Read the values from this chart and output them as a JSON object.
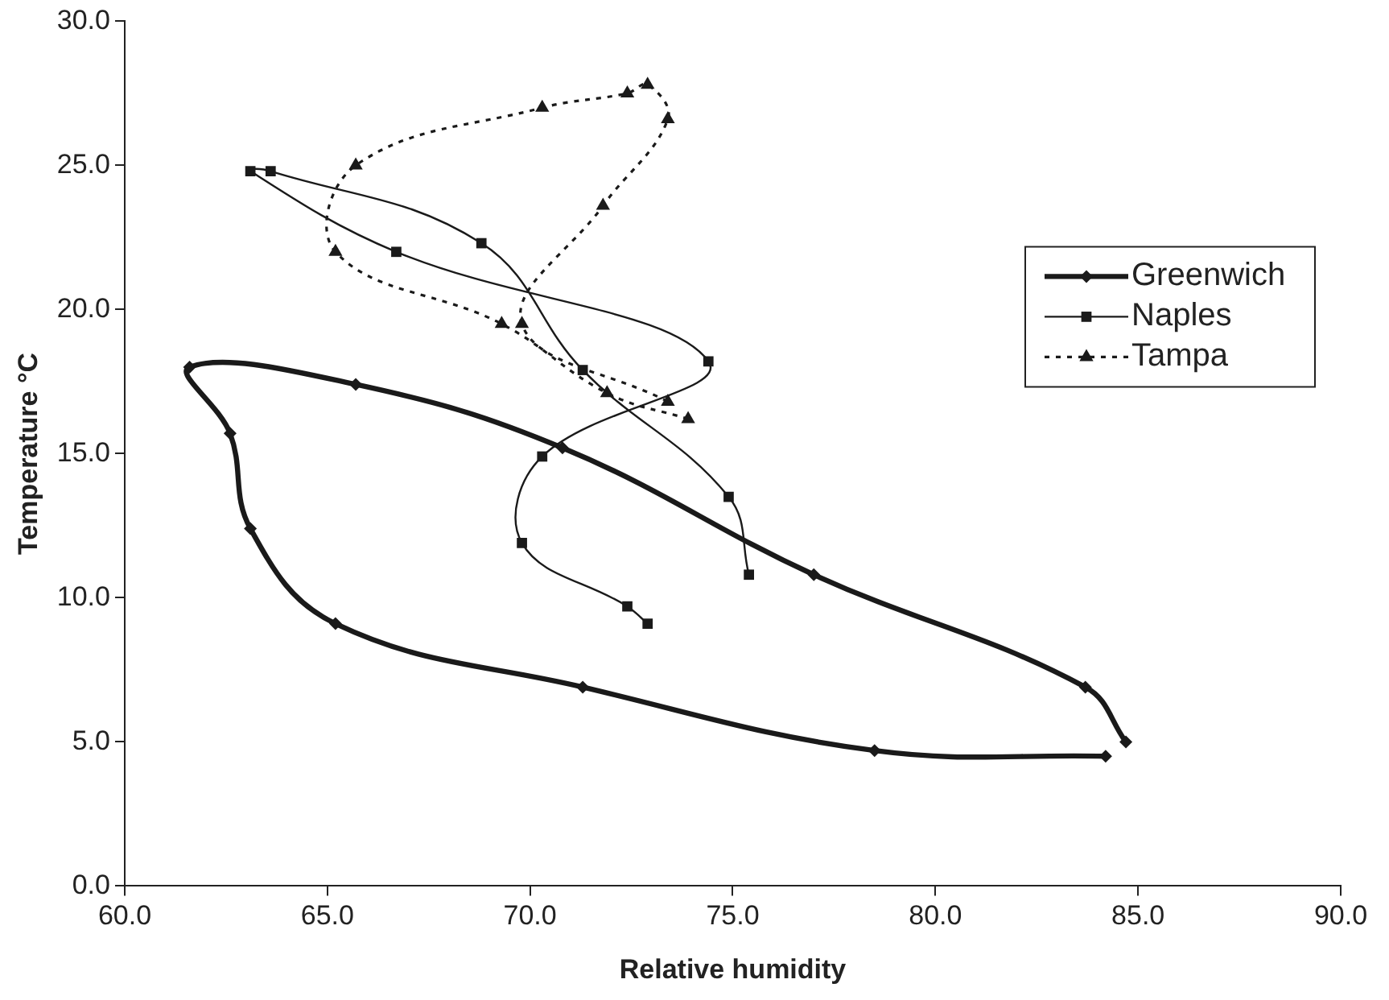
{
  "chart_data": {
    "type": "line",
    "xlabel": "Relative humidity",
    "ylabel": "Temperature °C",
    "xlim": [
      60,
      90
    ],
    "xticks": [
      {
        "value": 60,
        "label": "60.0"
      },
      {
        "value": 65,
        "label": "65.0"
      },
      {
        "value": 70,
        "label": "70.0"
      },
      {
        "value": 75,
        "label": "75.0"
      },
      {
        "value": 80,
        "label": "80.0"
      },
      {
        "value": 85,
        "label": "85.0"
      },
      {
        "value": 90,
        "label": "90.0"
      }
    ],
    "ylim": [
      0,
      30
    ],
    "yticks": [
      {
        "value": 0,
        "label": "0.0"
      },
      {
        "value": 5,
        "label": "5.0"
      },
      {
        "value": 10,
        "label": "10.0"
      },
      {
        "value": 15,
        "label": "15.0"
      },
      {
        "value": 20,
        "label": "20.0"
      },
      {
        "value": 25,
        "label": "25.0"
      },
      {
        "value": 30,
        "label": "30.0"
      }
    ],
    "grid": false,
    "legend": "right",
    "series": [
      {
        "name": "Greenwich",
        "color": "#1a1a1a",
        "marker": "diamond",
        "line_style": "solid",
        "x": [
          84.2,
          78.5,
          71.3,
          65.2,
          63.1,
          62.6,
          61.6,
          65.7,
          70.8,
          77.0,
          83.7,
          84.7
        ],
        "values": [
          4.5,
          4.7,
          6.9,
          9.1,
          12.4,
          15.7,
          18.0,
          17.4,
          15.2,
          10.8,
          6.9,
          5.0
        ]
      },
      {
        "name": "Naples",
        "color": "#1a1a1a",
        "marker": "square",
        "line_style": "solid",
        "x": [
          72.9,
          72.4,
          69.8,
          70.3,
          74.4,
          66.7,
          63.1,
          63.6,
          68.8,
          71.3,
          74.9,
          75.4
        ],
        "values": [
          9.1,
          9.7,
          11.9,
          14.9,
          18.2,
          22.0,
          24.8,
          24.8,
          22.3,
          17.9,
          13.5,
          10.8
        ]
      },
      {
        "name": "Tampa",
        "color": "#1a1a1a",
        "marker": "triangle",
        "line_style": "dotted",
        "x": [
          73.9,
          71.9,
          69.3,
          65.2,
          65.7,
          70.3,
          72.4,
          72.9,
          73.4,
          71.8,
          69.8,
          73.4
        ],
        "values": [
          16.2,
          17.1,
          19.5,
          22.0,
          25.0,
          27.0,
          27.5,
          27.8,
          26.6,
          23.6,
          19.5,
          16.8
        ]
      }
    ]
  }
}
